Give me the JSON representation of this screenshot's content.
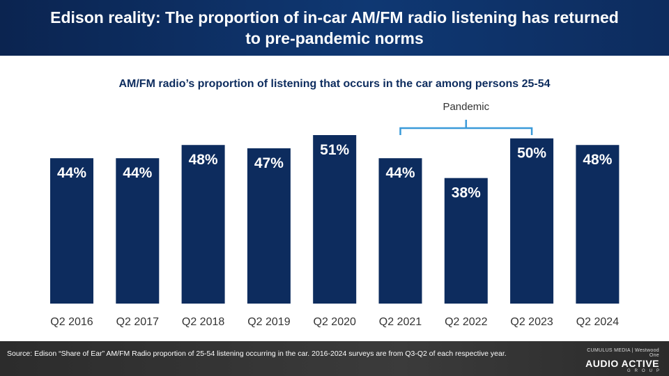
{
  "header": {
    "title": "Edison reality: The proportion of in-car AM/FM radio listening has returned to pre-pandemic norms"
  },
  "chart_data": {
    "type": "bar",
    "title": "AM/FM radio’s proportion of listening that occurs in the car among persons 25-54",
    "categories": [
      "Q2 2016",
      "Q2 2017",
      "Q2 2018",
      "Q2 2019",
      "Q2 2020",
      "Q2 2021",
      "Q2 2022",
      "Q2 2023",
      "Q2 2024"
    ],
    "values": [
      44,
      44,
      48,
      47,
      51,
      44,
      38,
      50,
      48
    ],
    "data_labels": [
      "44%",
      "44%",
      "48%",
      "47%",
      "51%",
      "44%",
      "38%",
      "50%",
      "48%"
    ],
    "unit": "%",
    "bar_color": "#0d2c5e",
    "bracket_color": "#3a9ad9",
    "annotation": {
      "label": "Pandemic",
      "from": "Q2 2021",
      "to": "Q2 2023"
    },
    "grid": false,
    "legend": "none"
  },
  "footer": {
    "source": "Source: Edison “Share of Ear” AM/FM Radio proportion of 25-54 listening occurring in the car. 2016-2024 surveys are from Q3-Q2 of each respective year.",
    "logo_top": "CUMULUS MEDIA | Westwood One",
    "logo_main": "AUDIO ACTIVE",
    "logo_sub": "GROUP"
  }
}
